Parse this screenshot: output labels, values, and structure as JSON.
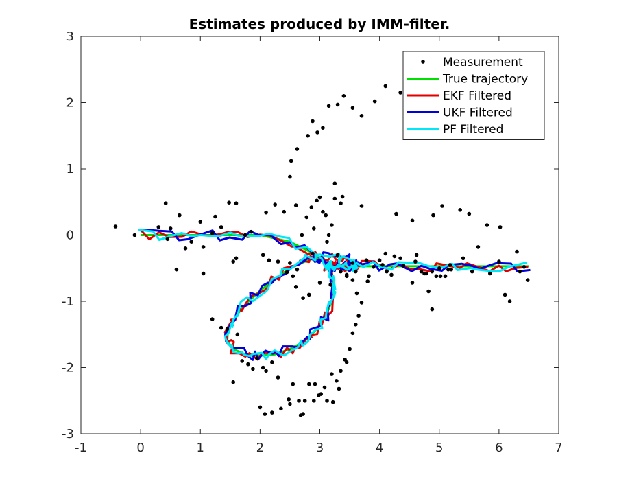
{
  "chart_data": {
    "type": "line",
    "title": "Estimates produced by IMM-filter.",
    "xlabel": "",
    "ylabel": "",
    "xlim": [
      -1,
      7
    ],
    "ylim": [
      -3,
      3
    ],
    "xticks": [
      -1,
      0,
      1,
      2,
      3,
      4,
      5,
      6,
      7
    ],
    "yticks": [
      -3,
      -2,
      -1,
      0,
      1,
      2,
      3
    ],
    "grid": false,
    "legend_position": "top-right",
    "series": [
      {
        "name": "Measurement",
        "kind": "scatter",
        "color": "#000000",
        "x": [
          -0.42,
          -0.1,
          0.3,
          0.42,
          0.45,
          0.5,
          0.65,
          0.75,
          0.85,
          1.0,
          1.05,
          1.2,
          1.35,
          1.48,
          1.55,
          1.6,
          1.75,
          1.85,
          2.05,
          2.15,
          2.3,
          2.45,
          2.55,
          2.62,
          2.7,
          2.78,
          2.86,
          2.88,
          2.9,
          2.95,
          3.0,
          3.05,
          3.1,
          3.12,
          3.15,
          3.2,
          3.25,
          3.3,
          3.35,
          3.45,
          3.55,
          3.6,
          3.78,
          3.82,
          4.05,
          4.12,
          4.2,
          4.35,
          4.55,
          4.62,
          4.75,
          4.82,
          4.88,
          5.02,
          5.15,
          5.2,
          5.4,
          5.55,
          5.65,
          5.85,
          6.0,
          6.1,
          6.18,
          6.3,
          6.35,
          6.42,
          6.48,
          1.2,
          1.35,
          1.45,
          1.55,
          1.62,
          1.7,
          1.8,
          1.88,
          1.95,
          2.05,
          2.1,
          2.2,
          2.3,
          2.48,
          2.55,
          2.65,
          2.72,
          2.82,
          2.92,
          3.02,
          3.12,
          3.22,
          3.28,
          3.35,
          3.42,
          3.5,
          3.55,
          3.6,
          3.65,
          2.0,
          2.08,
          2.2,
          2.35,
          2.5,
          2.68,
          2.75,
          2.9,
          2.98,
          3.08,
          3.2,
          3.32,
          3.45,
          2.5,
          2.6,
          2.72,
          2.82,
          3.0,
          3.18,
          3.45,
          3.55,
          3.62,
          3.7,
          3.8,
          3.9,
          4.0,
          4.1,
          4.25,
          4.4,
          4.6,
          4.7,
          4.78,
          4.88,
          4.95,
          5.0,
          5.1,
          5.18,
          4.72,
          4.52,
          4.35,
          4.1,
          3.92,
          3.7,
          3.55,
          3.4,
          3.3,
          3.15,
          3.05,
          2.96,
          2.88,
          2.8,
          2.62,
          2.52,
          2.5,
          3.25,
          3.38,
          1.05,
          0.6,
          1.25,
          1.6,
          2.1,
          2.25,
          2.4,
          2.6,
          3.35,
          3.7,
          4.28,
          4.55,
          4.9,
          5.05,
          5.35,
          5.5,
          5.8,
          6.02
        ],
        "y": [
          0.13,
          0.0,
          0.12,
          0.48,
          -0.06,
          0.1,
          0.3,
          -0.2,
          -0.1,
          0.2,
          -0.18,
          0.03,
          0.12,
          0.49,
          -0.4,
          -0.35,
          0.0,
          0.05,
          -0.3,
          -0.38,
          -0.4,
          -0.56,
          -0.62,
          -0.52,
          0.0,
          0.27,
          0.42,
          -0.28,
          0.1,
          0.52,
          0.57,
          0.35,
          0.3,
          -0.1,
          0.0,
          0.15,
          0.55,
          -0.3,
          -0.55,
          -0.6,
          -0.42,
          -0.55,
          -0.38,
          -0.62,
          -0.45,
          -0.55,
          -0.6,
          -0.35,
          -0.72,
          -0.3,
          -0.58,
          -0.85,
          -1.12,
          -0.62,
          -0.52,
          -0.52,
          -0.35,
          -0.55,
          -0.18,
          -0.58,
          -0.4,
          -0.9,
          -1.0,
          -0.25,
          -0.55,
          -0.48,
          -0.68,
          -1.27,
          -1.4,
          -1.42,
          -2.22,
          -1.5,
          -1.9,
          -1.95,
          -2.02,
          -1.86,
          -2.0,
          -2.05,
          -1.92,
          -2.15,
          -2.48,
          -2.25,
          -2.5,
          -2.7,
          -2.25,
          -2.25,
          -2.4,
          -2.5,
          -2.52,
          -2.2,
          -2.05,
          -1.88,
          -1.72,
          -1.48,
          -1.35,
          -1.22,
          -2.6,
          -2.7,
          -2.68,
          -2.62,
          -2.55,
          -2.72,
          -2.5,
          -2.5,
          -2.42,
          -2.3,
          -2.1,
          -2.32,
          -1.92,
          -0.42,
          -0.78,
          -0.95,
          -0.9,
          -0.72,
          -0.75,
          -0.62,
          -0.68,
          -0.88,
          -1.02,
          -0.7,
          -0.48,
          -0.38,
          -0.28,
          -0.32,
          -0.46,
          -0.4,
          -0.55,
          -0.58,
          -0.55,
          -0.62,
          -0.5,
          -0.62,
          -0.45,
          1.85,
          2.05,
          2.15,
          2.25,
          2.02,
          1.8,
          1.92,
          2.1,
          1.97,
          1.95,
          1.62,
          1.55,
          1.72,
          1.5,
          1.3,
          1.12,
          0.88,
          0.78,
          0.58,
          -0.58,
          -0.52,
          0.28,
          0.48,
          0.34,
          0.46,
          0.35,
          0.45,
          0.48,
          0.44,
          0.32,
          0.22,
          0.3,
          0.44,
          0.38,
          0.32,
          0.15,
          0.12
        ],
        "marker": "dot"
      },
      {
        "name": "True trajectory",
        "kind": "line",
        "color": "#00e000",
        "x": [
          0.0,
          0.5,
          1.0,
          1.5,
          2.0,
          2.5,
          2.9,
          3.1,
          3.2,
          3.24,
          3.2,
          3.1,
          2.95,
          2.75,
          2.5,
          2.25,
          2.0,
          1.75,
          1.55,
          1.45,
          1.46,
          1.55,
          1.72,
          1.95,
          2.22,
          2.5,
          2.8,
          3.05,
          3.28,
          3.45,
          3.55,
          3.6,
          3.6,
          3.58,
          3.5,
          3.4,
          3.28,
          3.18,
          3.12,
          3.12,
          3.2,
          3.35,
          3.6,
          4.0,
          4.5,
          5.0,
          5.5,
          6.0,
          6.5
        ],
        "y": [
          0.0,
          0.0,
          0.0,
          0.0,
          0.0,
          -0.1,
          -0.28,
          -0.45,
          -0.62,
          -0.8,
          -1.0,
          -1.22,
          -1.42,
          -1.6,
          -1.72,
          -1.8,
          -1.82,
          -1.8,
          -1.72,
          -1.6,
          -1.45,
          -1.28,
          -1.08,
          -0.88,
          -0.68,
          -0.5,
          -0.38,
          -0.32,
          -0.33,
          -0.36,
          -0.4,
          -0.46,
          -0.47,
          -0.47,
          -0.47,
          -0.47,
          -0.47,
          -0.47,
          -0.47,
          -0.47,
          -0.47,
          -0.47,
          -0.47,
          -0.47,
          -0.47,
          -0.47,
          -0.47,
          -0.47,
          -0.47
        ],
        "marker": "none"
      },
      {
        "name": "EKF Filtered",
        "kind": "line",
        "color": "#e00000",
        "x": [],
        "y": [],
        "marker": "none"
      },
      {
        "name": "UKF Filtered",
        "kind": "line",
        "color": "#0000d8",
        "x": [],
        "y": [],
        "marker": "none"
      },
      {
        "name": "PF Filtered",
        "kind": "line",
        "color": "#00e8f8",
        "x": [],
        "y": [],
        "marker": "none"
      }
    ]
  }
}
